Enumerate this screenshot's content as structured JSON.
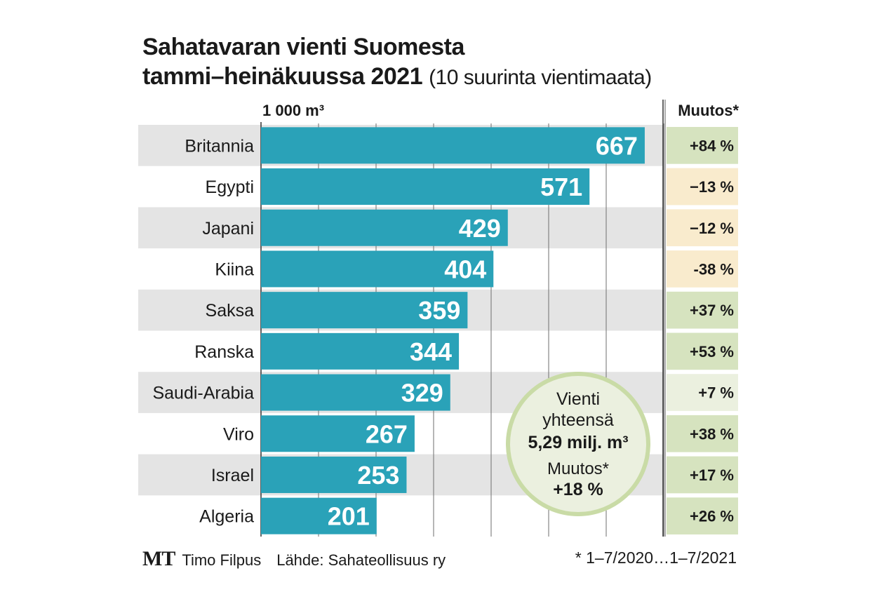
{
  "title_line1": "Sahatavaran vienti Suomesta",
  "title_line2": "tammi–heinäkuussa 2021",
  "title_sub": "(10 suurinta vientimaata)",
  "footer": {
    "logo": "MT",
    "author": "Timo Filpus",
    "source": "Lähde: Sahateollisuus ry",
    "note": "* 1–7/2020…1–7/2021"
  },
  "chart_data": {
    "type": "bar",
    "orientation": "horizontal",
    "unit_label": "1 000 m³",
    "change_header": "Muutos*",
    "categories": [
      "Britannia",
      "Egypti",
      "Japani",
      "Kiina",
      "Saksa",
      "Ranska",
      "Saudi-Arabia",
      "Viro",
      "Israel",
      "Algeria"
    ],
    "values": [
      667,
      571,
      429,
      404,
      359,
      344,
      329,
      267,
      253,
      201
    ],
    "changes": [
      "+84 %",
      "−13 %",
      "−12 %",
      "-38 %",
      "+37 %",
      "+53 %",
      "+7 %",
      "+38 %",
      "+17 %",
      "+26 %"
    ],
    "change_colors": [
      "#d6e3bf",
      "#f9ebcd",
      "#f9ebcd",
      "#f9ebcd",
      "#d6e3bf",
      "#d6e3bf",
      "#ebf0df",
      "#d6e3bf",
      "#d6e3bf",
      "#d6e3bf"
    ],
    "xlim": [
      0,
      700
    ],
    "grid": true,
    "bar_color": "#2aa2b8",
    "stripe_color": "#e4e4e4",
    "annotation": {
      "line1": "Vienti",
      "line2": "yhteensä",
      "line3": "5,29 milj. m³",
      "line4": "Muutos*",
      "line5": "+18 %"
    }
  }
}
